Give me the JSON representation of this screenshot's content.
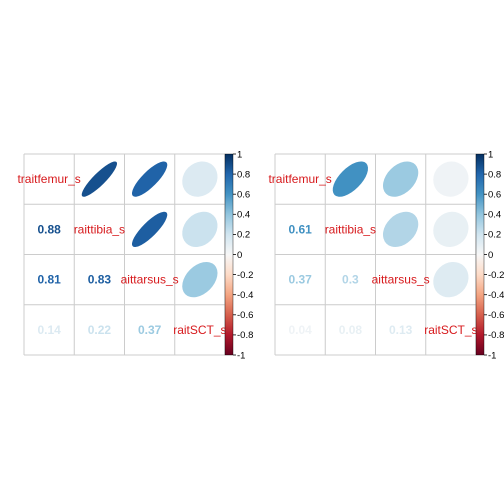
{
  "chart_data": [
    {
      "type": "heatmap",
      "style": "corrplot mixed: numbers in lower triangle, ellipses in upper triangle",
      "variables": [
        "traitfemur_s",
        "raittibia_s",
        "aittarsus_s",
        "raitSCT_s"
      ],
      "matrix": [
        [
          1.0,
          0.88,
          0.81,
          0.14
        ],
        [
          0.88,
          1.0,
          0.83,
          0.22
        ],
        [
          0.81,
          0.83,
          1.0,
          0.37
        ],
        [
          0.14,
          0.22,
          0.37,
          1.0
        ]
      ],
      "lower_labels": [
        [
          "0.88"
        ],
        [
          "0.81",
          "0.83"
        ],
        [
          "0.14",
          "0.22",
          "0.37"
        ]
      ],
      "colorbar": {
        "range": [
          -1,
          1
        ],
        "ticks": [
          "1",
          "0.8",
          "0.6",
          "0.4",
          "0.2",
          "0",
          "-0.2",
          "-0.4",
          "-0.6",
          "-0.8",
          "-1"
        ]
      }
    },
    {
      "type": "heatmap",
      "style": "corrplot mixed: numbers in lower triangle, ellipses in upper triangle",
      "variables": [
        "traitfemur_s",
        "raittibia_s",
        "aittarsus_s",
        "raitSCT_s"
      ],
      "matrix": [
        [
          1.0,
          0.61,
          0.37,
          0.04
        ],
        [
          0.61,
          1.0,
          0.3,
          0.08
        ],
        [
          0.37,
          0.3,
          1.0,
          0.13
        ],
        [
          0.04,
          0.08,
          0.13,
          1.0
        ]
      ],
      "lower_labels": [
        [
          "0.61"
        ],
        [
          "0.37",
          "0.3"
        ],
        [
          "0.04",
          "0.08",
          "0.13"
        ]
      ],
      "colorbar": {
        "range": [
          -1,
          1
        ],
        "ticks": [
          "1",
          "0.8",
          "0.6",
          "0.4",
          "0.2",
          "0",
          "-0.2",
          "-0.4",
          "-0.6",
          "-0.8",
          "-1"
        ]
      }
    }
  ]
}
